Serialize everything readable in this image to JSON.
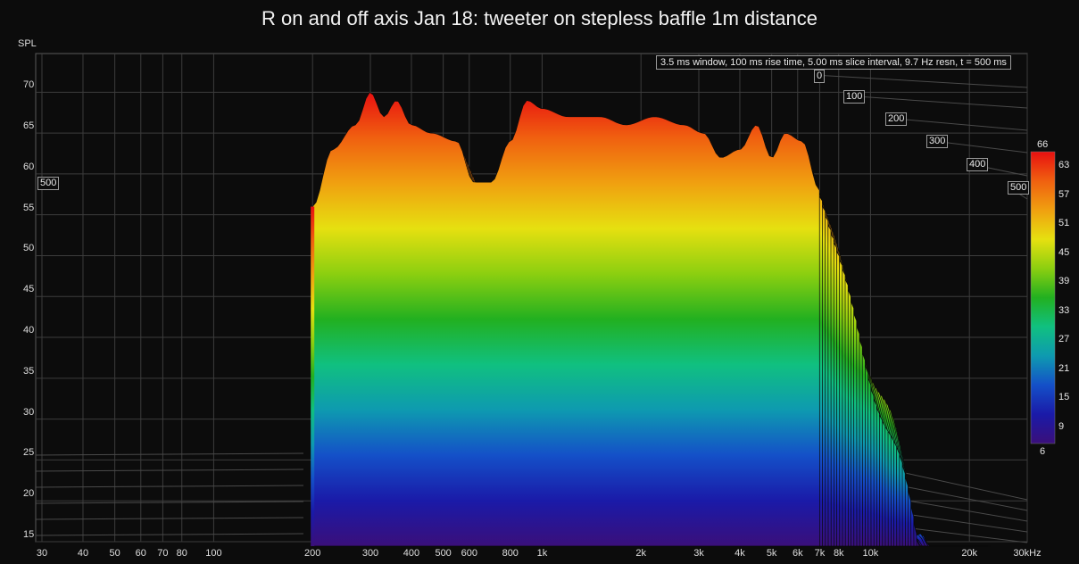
{
  "chart_data": {
    "type": "waterfall",
    "title": "R on and off axis Jan 18: tweeter on stepless baffle 1m distance",
    "subtitle": "3.5 ms window, 100 ms rise time, 5.00 ms slice interval, 9.7 Hz resn, t = 500 ms",
    "ylabel": "SPL",
    "ylim": [
      15,
      72
    ],
    "yticks": [
      "15",
      "20",
      "25",
      "30",
      "35",
      "40",
      "45",
      "50",
      "55",
      "60",
      "65",
      "70"
    ],
    "xscale": "log",
    "xlim": [
      30,
      30000
    ],
    "xticks": [
      {
        "v": 30,
        "t": "30"
      },
      {
        "v": 40,
        "t": "40"
      },
      {
        "v": 50,
        "t": "50"
      },
      {
        "v": 60,
        "t": "60"
      },
      {
        "v": 70,
        "t": "70"
      },
      {
        "v": 80,
        "t": "80"
      },
      {
        "v": 100,
        "t": "100"
      },
      {
        "v": 200,
        "t": "200"
      },
      {
        "v": 300,
        "t": "300"
      },
      {
        "v": 400,
        "t": "400"
      },
      {
        "v": 500,
        "t": "500"
      },
      {
        "v": 600,
        "t": "600"
      },
      {
        "v": 800,
        "t": "800"
      },
      {
        "v": 1000,
        "t": "1k"
      },
      {
        "v": 2000,
        "t": "2k"
      },
      {
        "v": 3000,
        "t": "3k"
      },
      {
        "v": 4000,
        "t": "4k"
      },
      {
        "v": 5000,
        "t": "5k"
      },
      {
        "v": 6000,
        "t": "6k"
      },
      {
        "v": 7000,
        "t": "7k"
      },
      {
        "v": 8000,
        "t": "8k"
      },
      {
        "v": 10000,
        "t": "10k"
      },
      {
        "v": 20000,
        "t": "20k"
      },
      {
        "v": 30000,
        "t": "30kHz"
      }
    ],
    "time_ticks": [
      "0",
      "100",
      "200",
      "300",
      "400",
      "500"
    ],
    "time_left_label": "500",
    "colorbar": {
      "min": "6",
      "max": "66",
      "ticks": [
        "63",
        "57",
        "51",
        "45",
        "39",
        "33",
        "27",
        "21",
        "15",
        "9"
      ]
    },
    "colors": [
      "#3a0f7a",
      "#1a1aa8",
      "#1450c8",
      "#0e9ab0",
      "#10c080",
      "#22b020",
      "#8ccf10",
      "#e6e010",
      "#f0a010",
      "#f06010",
      "#e81010"
    ],
    "front_slice": [
      {
        "f": 200,
        "spl": 56
      },
      {
        "f": 230,
        "spl": 63
      },
      {
        "f": 270,
        "spl": 66
      },
      {
        "f": 300,
        "spl": 70
      },
      {
        "f": 330,
        "spl": 67
      },
      {
        "f": 360,
        "spl": 69
      },
      {
        "f": 400,
        "spl": 66
      },
      {
        "f": 460,
        "spl": 65
      },
      {
        "f": 550,
        "spl": 64
      },
      {
        "f": 620,
        "spl": 59
      },
      {
        "f": 700,
        "spl": 59
      },
      {
        "f": 800,
        "spl": 64
      },
      {
        "f": 900,
        "spl": 69
      },
      {
        "f": 1000,
        "spl": 68
      },
      {
        "f": 1200,
        "spl": 67
      },
      {
        "f": 1500,
        "spl": 67
      },
      {
        "f": 1800,
        "spl": 66
      },
      {
        "f": 2200,
        "spl": 67
      },
      {
        "f": 2700,
        "spl": 66
      },
      {
        "f": 3100,
        "spl": 65
      },
      {
        "f": 3500,
        "spl": 62
      },
      {
        "f": 4000,
        "spl": 63
      },
      {
        "f": 4500,
        "spl": 66
      },
      {
        "f": 5000,
        "spl": 62
      },
      {
        "f": 5500,
        "spl": 65
      },
      {
        "f": 6200,
        "spl": 64
      },
      {
        "f": 7000,
        "spl": 58
      }
    ]
  }
}
